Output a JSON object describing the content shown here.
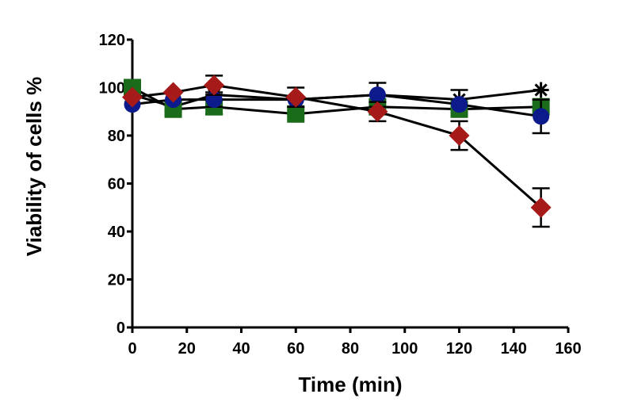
{
  "chart_data": {
    "type": "line",
    "xlabel": "Time (min)",
    "ylabel": "Viability of cells %",
    "xlim": [
      0,
      160
    ],
    "ylim": [
      0,
      120
    ],
    "x_ticks": [
      0,
      20,
      40,
      60,
      80,
      100,
      120,
      140,
      160
    ],
    "y_ticks": [
      0,
      20,
      40,
      60,
      80,
      100,
      120
    ],
    "grid": false,
    "series": [
      {
        "marker": "asterisk",
        "color": "#000000",
        "points": [
          {
            "x": 0,
            "y": 97,
            "err": 0
          },
          {
            "x": 15,
            "y": 92,
            "err": 2
          },
          {
            "x": 30,
            "y": 97,
            "err": 0
          },
          {
            "x": 60,
            "y": 95,
            "err": 0
          },
          {
            "x": 90,
            "y": 97,
            "err": 0
          },
          {
            "x": 120,
            "y": 95,
            "err": 4
          },
          {
            "x": 150,
            "y": 99,
            "err": 0
          }
        ]
      },
      {
        "marker": "square",
        "color": "#1a6b1a",
        "points": [
          {
            "x": 0,
            "y": 100,
            "err": 0
          },
          {
            "x": 15,
            "y": 91,
            "err": 0
          },
          {
            "x": 30,
            "y": 92,
            "err": 3
          },
          {
            "x": 60,
            "y": 89,
            "err": 0
          },
          {
            "x": 90,
            "y": 92,
            "err": 0
          },
          {
            "x": 120,
            "y": 91,
            "err": 0
          },
          {
            "x": 150,
            "y": 92,
            "err": 0
          }
        ]
      },
      {
        "marker": "circle",
        "color": "#0d1a8c",
        "points": [
          {
            "x": 0,
            "y": 93,
            "err": 0
          },
          {
            "x": 15,
            "y": 95,
            "err": 0
          },
          {
            "x": 30,
            "y": 95,
            "err": 3
          },
          {
            "x": 60,
            "y": 95,
            "err": 0
          },
          {
            "x": 90,
            "y": 97,
            "err": 5
          },
          {
            "x": 120,
            "y": 93,
            "err": 0
          },
          {
            "x": 150,
            "y": 88,
            "err": 7
          }
        ]
      },
      {
        "marker": "diamond",
        "color": "#a61a1a",
        "points": [
          {
            "x": 0,
            "y": 96,
            "err": 0
          },
          {
            "x": 15,
            "y": 98,
            "err": 0
          },
          {
            "x": 30,
            "y": 101,
            "err": 4
          },
          {
            "x": 60,
            "y": 96,
            "err": 4
          },
          {
            "x": 90,
            "y": 90,
            "err": 4
          },
          {
            "x": 120,
            "y": 80,
            "err": 6
          },
          {
            "x": 150,
            "y": 50,
            "err": 8
          }
        ]
      }
    ]
  }
}
